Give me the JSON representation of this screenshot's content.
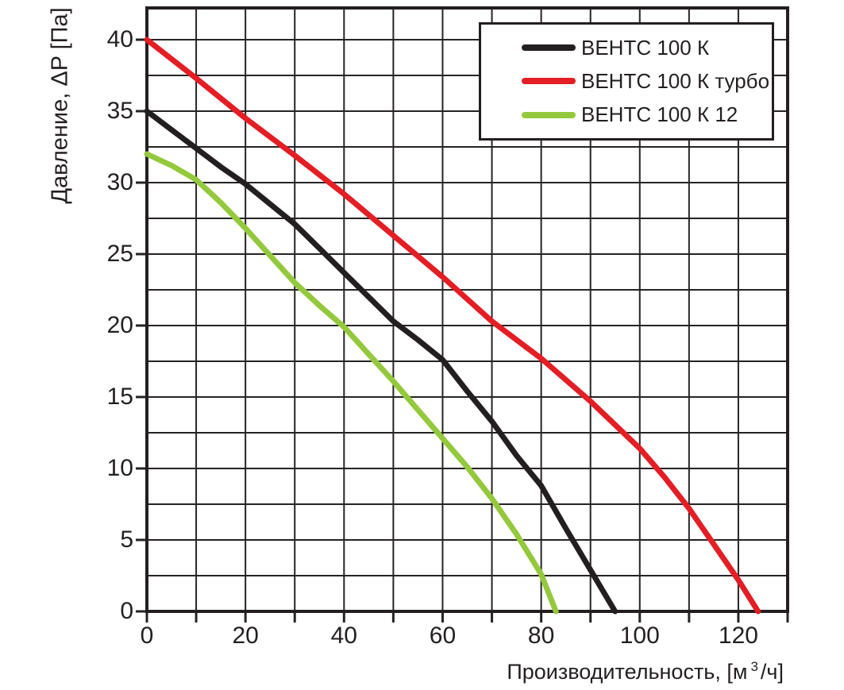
{
  "chart_data": {
    "type": "line",
    "title": "",
    "xlabel": "Производительность, [м³/ч]",
    "xlabel_parts": {
      "prefix": "Производительность, [м",
      "sup": "3",
      "suffix": "/ч]"
    },
    "ylabel": "Давление, ΔP [Па]",
    "xlim": [
      0,
      130
    ],
    "ylim": [
      0,
      42.2
    ],
    "grid": true,
    "x_grid_step": 10,
    "y_grid_step": 2.5,
    "x_tick_step_minor": 10,
    "y_tick_step": 5,
    "x_tick_labels": [
      0,
      20,
      40,
      60,
      80,
      100,
      120
    ],
    "y_tick_labels": [
      0,
      5,
      10,
      15,
      20,
      25,
      30,
      35,
      40
    ],
    "legend_position": "top-right",
    "colors": {
      "grid": "#262324",
      "frame": "#231f20",
      "text": "#231f20"
    },
    "series": [
      {
        "name": "ВЕНТС 100 К",
        "color": "#231f20",
        "points": [
          [
            0,
            35
          ],
          [
            5,
            33.7
          ],
          [
            10,
            32.4
          ],
          [
            15,
            31.1
          ],
          [
            20,
            29.9
          ],
          [
            25,
            28.5
          ],
          [
            30,
            27.1
          ],
          [
            35,
            25.4
          ],
          [
            40,
            23.7
          ],
          [
            45,
            22
          ],
          [
            50,
            20.3
          ],
          [
            55,
            19
          ],
          [
            60,
            17.6
          ],
          [
            65,
            15.4
          ],
          [
            70,
            13.3
          ],
          [
            75,
            10.9
          ],
          [
            80,
            8.8
          ],
          [
            85,
            5.8
          ],
          [
            90,
            2.9
          ],
          [
            95,
            0
          ]
        ]
      },
      {
        "name": "ВЕНТС 100 К турбо",
        "color": "#e31e24",
        "points": [
          [
            0,
            40
          ],
          [
            10,
            37.3
          ],
          [
            20,
            34.5
          ],
          [
            30,
            31.9
          ],
          [
            40,
            29.2
          ],
          [
            50,
            26.3
          ],
          [
            60,
            23.4
          ],
          [
            70,
            20.3
          ],
          [
            80,
            17.7
          ],
          [
            90,
            14.7
          ],
          [
            100,
            11.4
          ],
          [
            105,
            9.4
          ],
          [
            110,
            7.2
          ],
          [
            115,
            4.7
          ],
          [
            120,
            2.2
          ],
          [
            124,
            0
          ]
        ]
      },
      {
        "name": "ВЕНТС 100 К 12",
        "color": "#94c83d",
        "points": [
          [
            0,
            32
          ],
          [
            5,
            31.2
          ],
          [
            10,
            30.2
          ],
          [
            15,
            28.6
          ],
          [
            20,
            26.8
          ],
          [
            25,
            24.9
          ],
          [
            30,
            23
          ],
          [
            35,
            21.4
          ],
          [
            40,
            19.9
          ],
          [
            45,
            18
          ],
          [
            50,
            16.1
          ],
          [
            55,
            14.1
          ],
          [
            60,
            12.1
          ],
          [
            65,
            10.1
          ],
          [
            70,
            7.9
          ],
          [
            75,
            5.4
          ],
          [
            80,
            2.6
          ],
          [
            83,
            0
          ]
        ]
      }
    ]
  }
}
